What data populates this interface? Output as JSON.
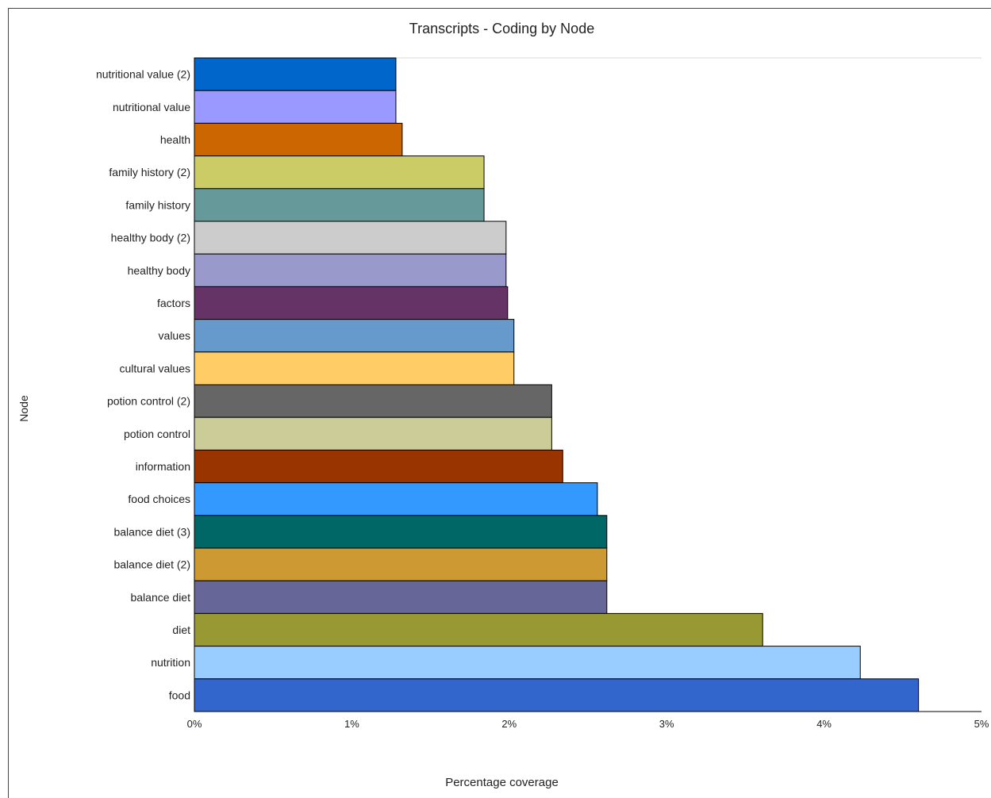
{
  "chart_data": {
    "type": "bar",
    "orientation": "horizontal",
    "title": "Transcripts - Coding by Node",
    "xlabel": "Percentage coverage",
    "ylabel": "Node",
    "xlim": [
      0,
      5
    ],
    "x_ticks": [
      "0%",
      "1%",
      "2%",
      "3%",
      "4%",
      "5%"
    ],
    "grid": false,
    "categories": [
      "nutritional value (2)",
      "nutritional value",
      "health",
      "family history (2)",
      "family history",
      "healthy body (2)",
      "healthy body",
      "factors",
      "values",
      "cultural values",
      "potion control (2)",
      "potion control",
      "information",
      "food choices",
      "balance diet (3)",
      "balance diet (2)",
      "balance diet",
      "diet",
      "nutrition",
      "food"
    ],
    "values": [
      1.28,
      1.28,
      1.32,
      1.84,
      1.84,
      1.98,
      1.98,
      1.99,
      2.03,
      2.03,
      2.27,
      2.27,
      2.34,
      2.56,
      2.62,
      2.62,
      2.62,
      3.61,
      4.23,
      4.6
    ],
    "colors": [
      "#0066cc",
      "#9999ff",
      "#cc6600",
      "#cccc66",
      "#669999",
      "#cccccc",
      "#9999cc",
      "#663366",
      "#6699cc",
      "#ffcc66",
      "#666666",
      "#cccc99",
      "#993300",
      "#3399ff",
      "#006666",
      "#cc9933",
      "#666699",
      "#999933",
      "#99ccff",
      "#3366cc"
    ]
  }
}
